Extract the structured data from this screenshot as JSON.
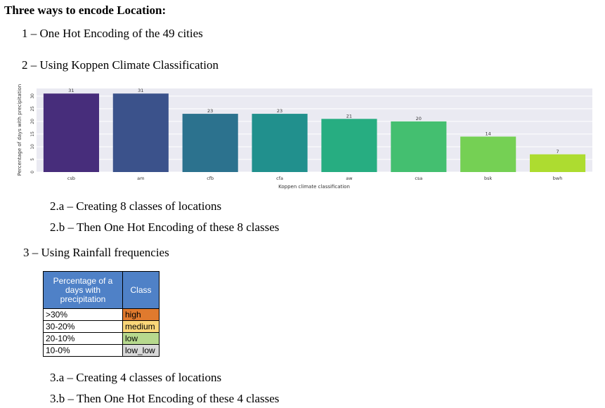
{
  "heading": "Three ways to encode Location:",
  "item1": "1 – One Hot Encoding of the 49 cities",
  "item2": "2 – Using Koppen Climate Classification",
  "item2a": "2.a – Creating 8 classes of locations",
  "item2b": "2.b – Then One Hot Encoding of these 8 classes",
  "item3": "3 – Using Rainfall frequencies",
  "item3a": "3.a – Creating 4 classes of locations",
  "item3b": "3.b – Then One Hot Encoding of these 4 classes",
  "chart_data": {
    "type": "bar",
    "categories": [
      "csb",
      "am",
      "cfb",
      "cfa",
      "aw",
      "csa",
      "bsk",
      "bwh"
    ],
    "values": [
      31,
      31,
      23,
      23,
      21,
      20,
      14,
      7
    ],
    "data_labels": [
      "31",
      "31",
      "23",
      "23",
      "21",
      "20",
      "14",
      "7"
    ],
    "colors": [
      "#472d7b",
      "#3b528b",
      "#2c728e",
      "#21908d",
      "#27ad81",
      "#44bf70",
      "#75d054",
      "#addc30"
    ],
    "xlabel": "Koppen climate classification",
    "ylabel": "Percentage of days with precipitation",
    "ylim": [
      0,
      33
    ],
    "yticks": [
      0,
      5,
      10,
      15,
      20,
      25,
      30
    ],
    "grid": true,
    "background": "#eaeaf2"
  },
  "table": {
    "header": [
      "Percentage of a days with precipitation",
      "Class"
    ],
    "rows": [
      {
        "range": ">30%",
        "class": "high",
        "color": "#e07a2e"
      },
      {
        "range": "30-20%",
        "class": "medium",
        "color": "#fbd77a"
      },
      {
        "range": "20-10%",
        "class": "low",
        "color": "#b7d98e"
      },
      {
        "range": "10-0%",
        "class": "low_low",
        "color": "#d9d9d9"
      }
    ]
  }
}
